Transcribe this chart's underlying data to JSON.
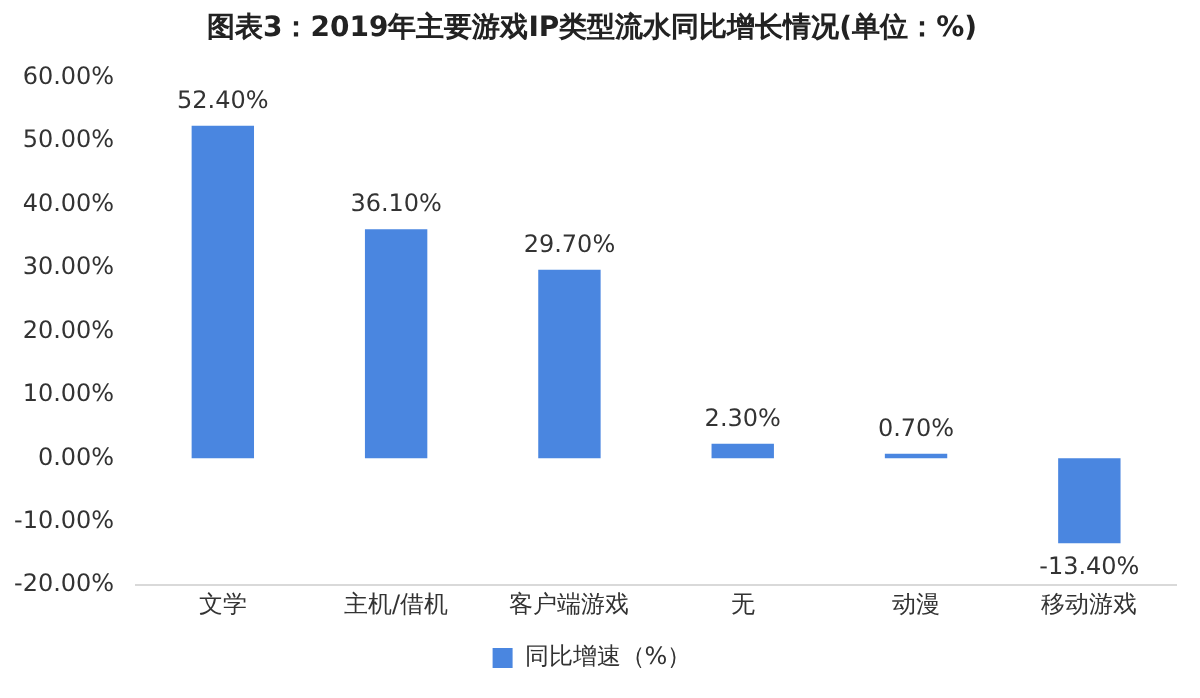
{
  "chart_data": {
    "type": "bar",
    "title": "图表3：2019年主要游戏IP类型流水同比增长情况(单位：%)",
    "categories": [
      "文学",
      "主机/借机",
      "客户端游戏",
      "无",
      "动漫",
      "移动游戏"
    ],
    "series": [
      {
        "name": "同比增速（%）",
        "color": "#4a86e0",
        "values": [
          52.4,
          36.1,
          29.7,
          2.3,
          0.7,
          -13.4
        ]
      }
    ],
    "value_labels": [
      "52.40%",
      "36.10%",
      "29.70%",
      "2.30%",
      "0.70%",
      "-13.40%"
    ],
    "ylim": [
      -20,
      60
    ],
    "yticks": [
      {
        "value": -20,
        "label": "-20.00%"
      },
      {
        "value": -10,
        "label": "-10.00%"
      },
      {
        "value": 0,
        "label": "0.00%"
      },
      {
        "value": 10,
        "label": "10.00%"
      },
      {
        "value": 20,
        "label": "20.00%"
      },
      {
        "value": 30,
        "label": "30.00%"
      },
      {
        "value": 40,
        "label": "40.00%"
      },
      {
        "value": 50,
        "label": "50.00%"
      },
      {
        "value": 60,
        "label": "60.00%"
      }
    ],
    "grid": false,
    "legend": "bottom"
  }
}
